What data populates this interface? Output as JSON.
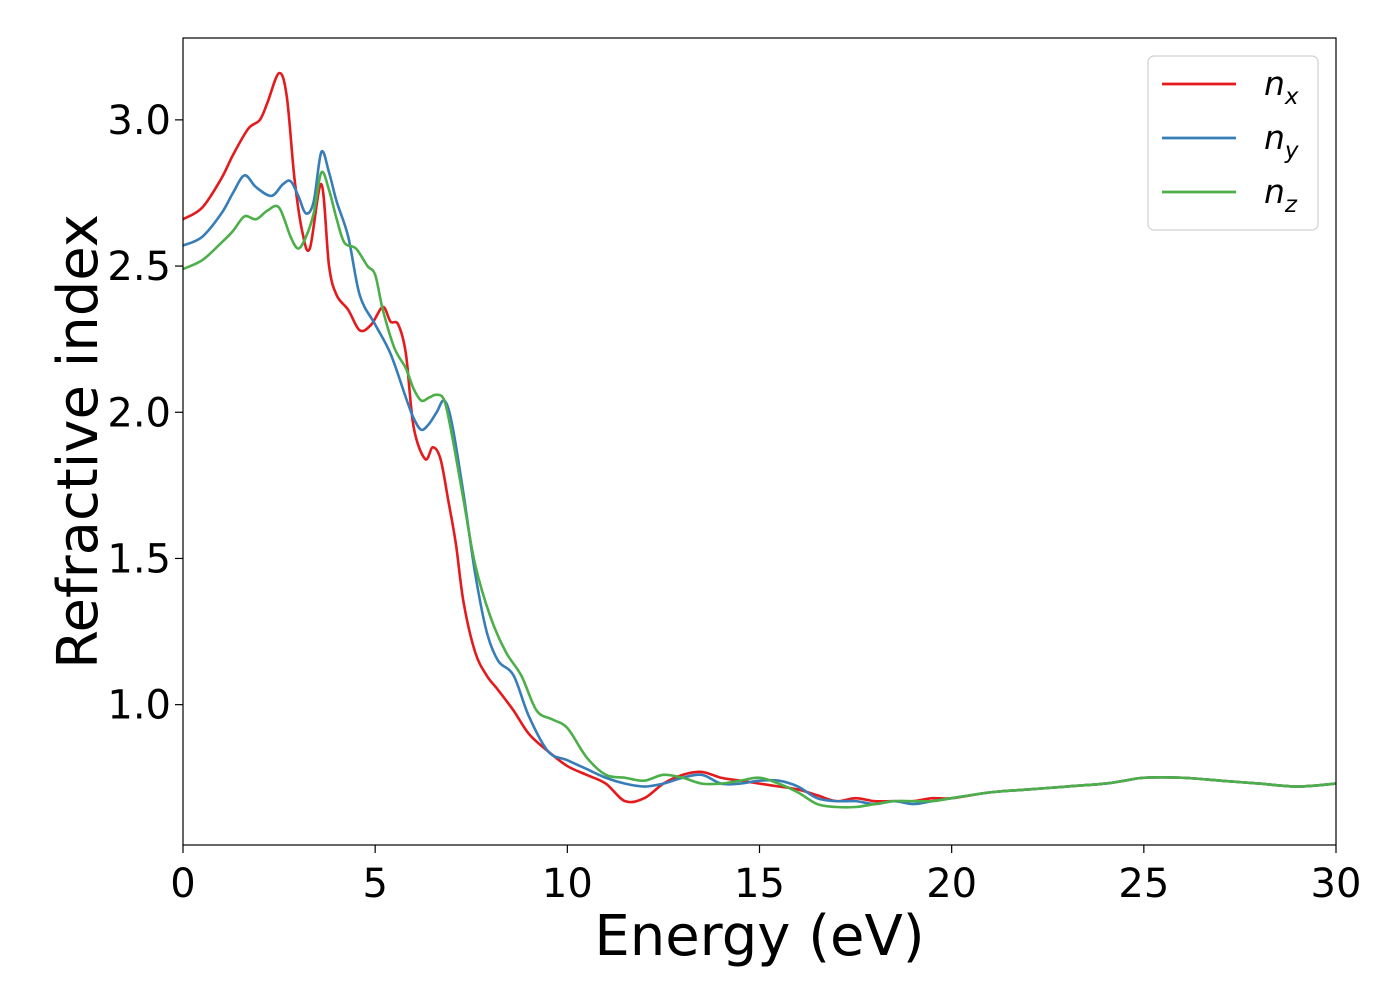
{
  "chart_data": {
    "type": "line",
    "xlabel": "Energy (eV)",
    "ylabel": "Refractive index",
    "xlim": [
      0,
      30
    ],
    "ylim": [
      0.52,
      3.28
    ],
    "xticks": [
      0,
      5,
      10,
      15,
      20,
      25,
      30
    ],
    "xtick_labels": [
      "0",
      "5",
      "10",
      "15",
      "20",
      "25",
      "30"
    ],
    "yticks": [
      1.0,
      1.5,
      2.0,
      2.5,
      3.0
    ],
    "ytick_labels": [
      "1.0",
      "1.5",
      "2.0",
      "2.5",
      "3.0"
    ],
    "grid": false,
    "legend_position": "top-right",
    "series": [
      {
        "name": "n_x",
        "label_base": "n",
        "label_sub": "x",
        "color": "#e41a1c",
        "x": [
          0,
          0.5,
          1.0,
          1.3,
          1.7,
          2.0,
          2.2,
          2.5,
          2.7,
          2.9,
          3.1,
          3.3,
          3.6,
          3.8,
          4.0,
          4.3,
          4.6,
          4.9,
          5.2,
          5.4,
          5.6,
          5.8,
          6.0,
          6.3,
          6.5,
          6.7,
          6.9,
          7.1,
          7.3,
          7.6,
          7.9,
          8.2,
          8.6,
          9.0,
          9.5,
          10.0,
          10.5,
          11.0,
          11.5,
          12.0,
          12.5,
          13.0,
          13.5,
          14.0,
          14.5,
          15.0,
          15.5,
          16.0,
          16.5,
          17.0,
          17.5,
          18.0,
          18.5,
          19.0,
          19.5,
          20.0,
          21.0,
          22.0,
          23.0,
          24.0,
          24.5,
          25.0,
          26.0,
          27.0,
          28.0,
          29.0,
          30.0
        ],
        "y": [
          2.66,
          2.7,
          2.8,
          2.88,
          2.97,
          3.0,
          3.06,
          3.16,
          3.08,
          2.8,
          2.62,
          2.56,
          2.78,
          2.5,
          2.4,
          2.35,
          2.28,
          2.3,
          2.36,
          2.31,
          2.3,
          2.2,
          1.95,
          1.84,
          1.88,
          1.84,
          1.7,
          1.55,
          1.35,
          1.18,
          1.1,
          1.05,
          0.98,
          0.9,
          0.84,
          0.79,
          0.76,
          0.73,
          0.67,
          0.68,
          0.73,
          0.76,
          0.77,
          0.75,
          0.74,
          0.73,
          0.72,
          0.71,
          0.69,
          0.67,
          0.68,
          0.67,
          0.67,
          0.67,
          0.68,
          0.68,
          0.7,
          0.71,
          0.72,
          0.73,
          0.74,
          0.75,
          0.75,
          0.74,
          0.73,
          0.72,
          0.73
        ]
      },
      {
        "name": "n_y",
        "label_base": "n",
        "label_sub": "y",
        "color": "#377eb8",
        "x": [
          0,
          0.5,
          1.0,
          1.3,
          1.6,
          1.9,
          2.3,
          2.6,
          2.8,
          3.0,
          3.2,
          3.4,
          3.6,
          3.8,
          4.0,
          4.3,
          4.6,
          5.0,
          5.4,
          5.8,
          6.0,
          6.2,
          6.4,
          6.6,
          6.8,
          7.0,
          7.3,
          7.6,
          7.9,
          8.2,
          8.6,
          9.0,
          9.5,
          10.0,
          10.5,
          11.0,
          11.5,
          12.0,
          12.5,
          13.0,
          13.5,
          14.0,
          14.5,
          15.0,
          15.5,
          16.0,
          16.5,
          17.0,
          17.5,
          18.0,
          18.5,
          19.0,
          19.5,
          20.0,
          21.0,
          22.0,
          23.0,
          24.0,
          24.5,
          25.0,
          26.0,
          27.0,
          28.0,
          29.0,
          30.0
        ],
        "y": [
          2.57,
          2.6,
          2.68,
          2.75,
          2.81,
          2.77,
          2.74,
          2.78,
          2.79,
          2.74,
          2.68,
          2.72,
          2.89,
          2.82,
          2.72,
          2.6,
          2.4,
          2.3,
          2.2,
          2.05,
          1.98,
          1.94,
          1.96,
          2.0,
          2.04,
          1.96,
          1.72,
          1.45,
          1.25,
          1.15,
          1.1,
          0.96,
          0.84,
          0.81,
          0.78,
          0.75,
          0.73,
          0.72,
          0.73,
          0.75,
          0.76,
          0.73,
          0.73,
          0.74,
          0.74,
          0.72,
          0.68,
          0.67,
          0.67,
          0.66,
          0.67,
          0.66,
          0.67,
          0.68,
          0.7,
          0.71,
          0.72,
          0.73,
          0.74,
          0.75,
          0.75,
          0.74,
          0.73,
          0.72,
          0.73
        ]
      },
      {
        "name": "n_z",
        "label_base": "n",
        "label_sub": "z",
        "color": "#4daf4a",
        "x": [
          0,
          0.5,
          1.0,
          1.3,
          1.6,
          1.9,
          2.2,
          2.5,
          2.8,
          3.0,
          3.2,
          3.4,
          3.6,
          3.8,
          4.0,
          4.2,
          4.5,
          4.8,
          5.0,
          5.2,
          5.5,
          5.8,
          6.0,
          6.2,
          6.4,
          6.6,
          6.8,
          7.0,
          7.3,
          7.6,
          8.0,
          8.4,
          8.8,
          9.2,
          9.6,
          10.0,
          10.5,
          11.0,
          11.5,
          12.0,
          12.5,
          13.0,
          13.5,
          14.0,
          14.5,
          15.0,
          15.5,
          16.0,
          16.5,
          17.0,
          17.5,
          18.0,
          18.5,
          19.0,
          19.5,
          20.0,
          21.0,
          22.0,
          23.0,
          24.0,
          24.5,
          25.0,
          26.0,
          27.0,
          28.0,
          29.0,
          30.0
        ],
        "y": [
          2.49,
          2.52,
          2.58,
          2.62,
          2.67,
          2.66,
          2.69,
          2.7,
          2.6,
          2.56,
          2.6,
          2.68,
          2.82,
          2.76,
          2.66,
          2.58,
          2.56,
          2.5,
          2.47,
          2.35,
          2.22,
          2.15,
          2.08,
          2.04,
          2.05,
          2.06,
          2.04,
          1.92,
          1.7,
          1.48,
          1.3,
          1.18,
          1.1,
          0.98,
          0.95,
          0.92,
          0.82,
          0.76,
          0.75,
          0.74,
          0.76,
          0.75,
          0.73,
          0.73,
          0.74,
          0.75,
          0.73,
          0.7,
          0.66,
          0.65,
          0.65,
          0.66,
          0.67,
          0.67,
          0.67,
          0.68,
          0.7,
          0.71,
          0.72,
          0.73,
          0.74,
          0.75,
          0.75,
          0.74,
          0.73,
          0.72,
          0.73
        ]
      }
    ]
  }
}
